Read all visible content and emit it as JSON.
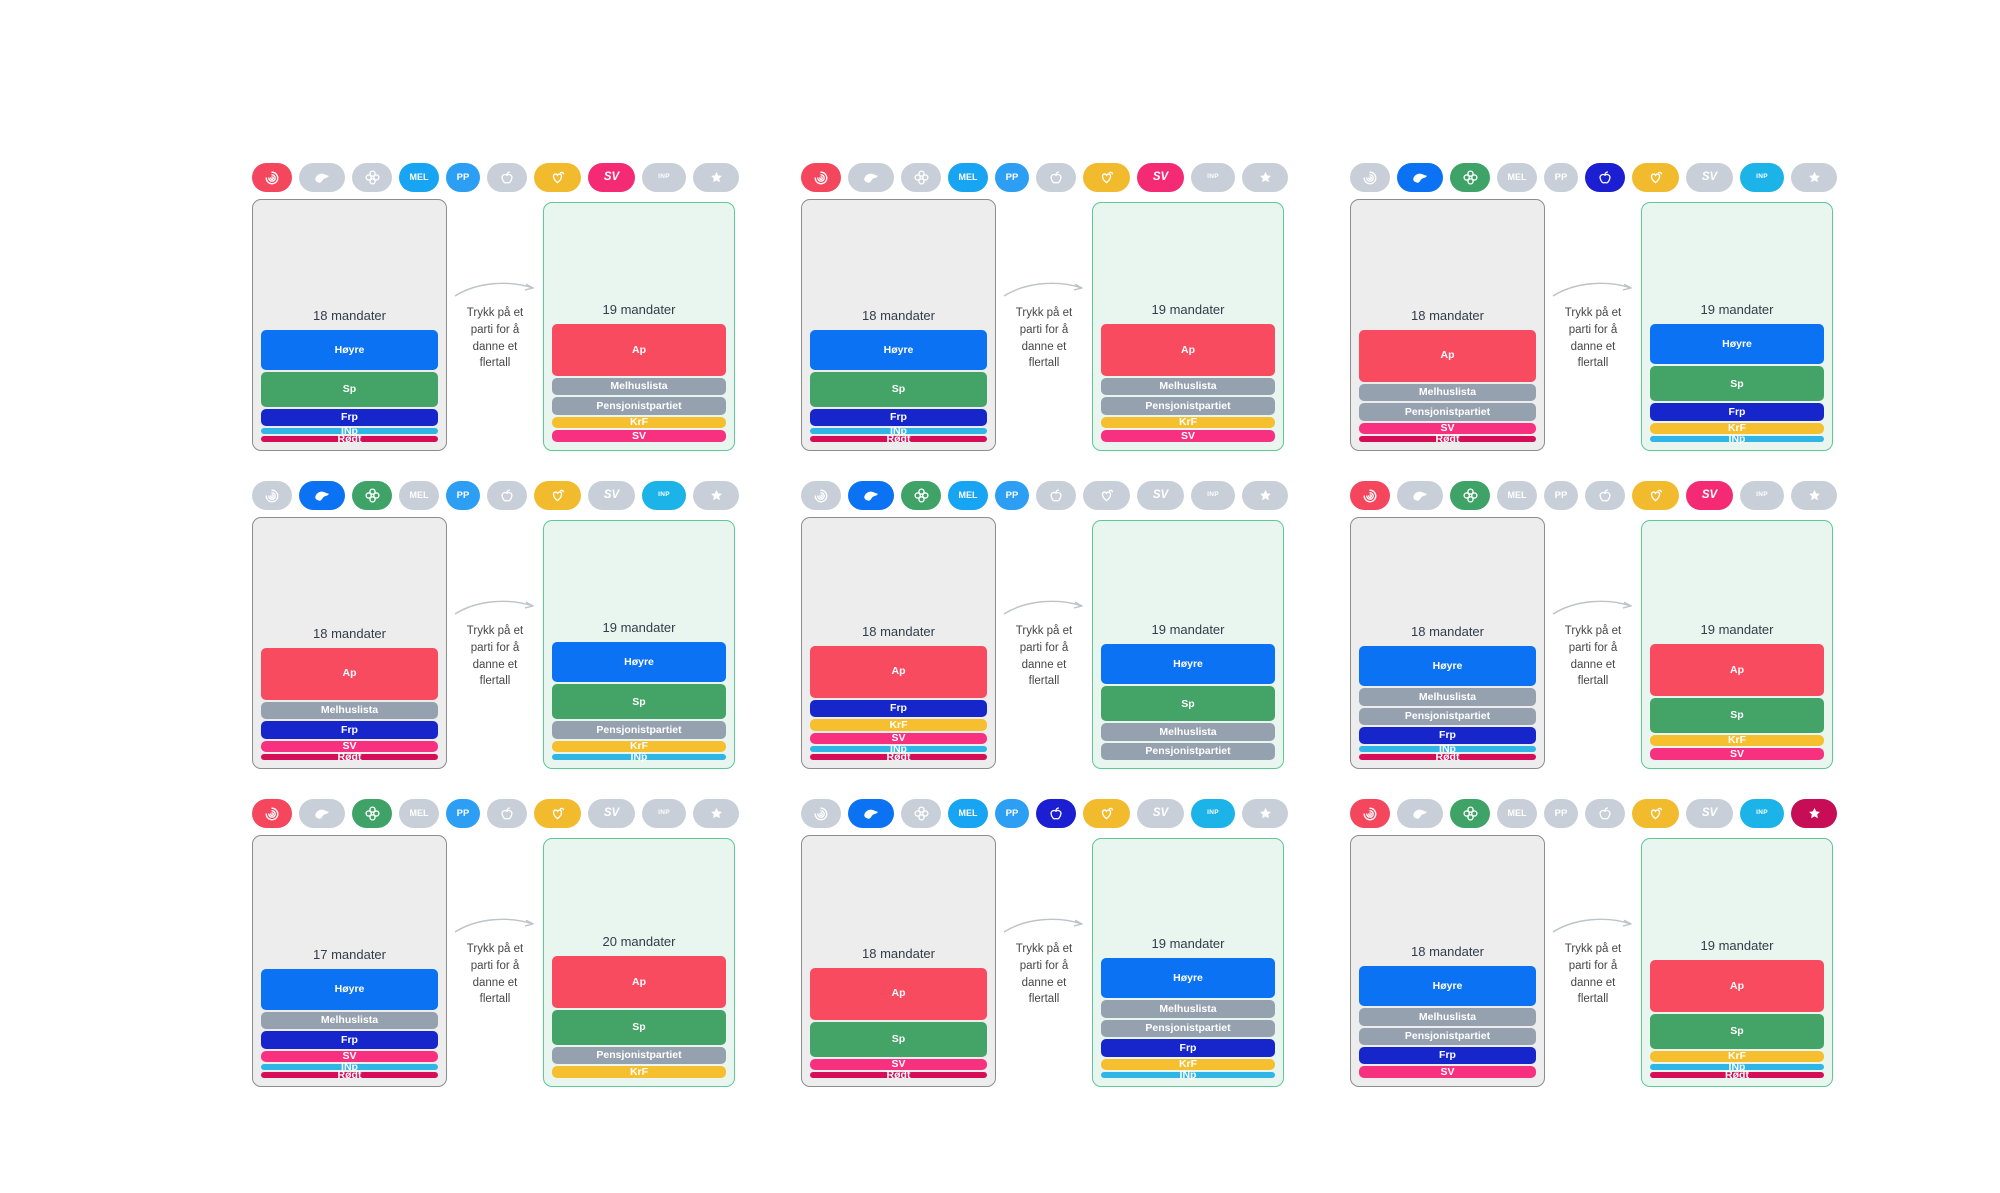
{
  "instruction": {
    "lines": [
      "Trykk på et",
      "parti for å",
      "danne et",
      "flertall"
    ]
  },
  "icon_order": [
    "ap",
    "hoyre",
    "sp",
    "mel",
    "pp",
    "frp",
    "krf",
    "sv",
    "inp",
    "rodt"
  ],
  "parties": {
    "ap": {
      "label": "Ap",
      "icon_text": "",
      "glyph": "rose-icon",
      "color": "#F84B5F",
      "icon_color": "#F4465C"
    },
    "hoyre": {
      "label": "Høyre",
      "icon_text": "",
      "glyph": "hoyre-logo-icon",
      "color": "#0B72F3",
      "icon_color": "#0B72F3"
    },
    "sp": {
      "label": "Sp",
      "icon_text": "",
      "glyph": "clover-icon",
      "color": "#44A366",
      "icon_color": "#3FA368"
    },
    "mel": {
      "label": "Melhuslista",
      "icon_text": "MEL",
      "glyph": "",
      "color": "#96A1AF",
      "icon_color": "#17A4F2"
    },
    "pp": {
      "label": "Pensjonistpartiet",
      "icon_text": "PP",
      "glyph": "",
      "color": "#96A1AF",
      "icon_color": "#2C9FF4"
    },
    "frp": {
      "label": "Frp",
      "icon_text": "",
      "glyph": "apple-icon",
      "color": "#1626CB",
      "icon_color": "#1B1FD1"
    },
    "krf": {
      "label": "KrF",
      "icon_text": "",
      "glyph": "heart-icon",
      "color": "#F6BF2F",
      "icon_color": "#F2BB2E"
    },
    "sv": {
      "label": "SV",
      "icon_text": "SV",
      "glyph": "",
      "color": "#F73180",
      "icon_color": "#F42A74"
    },
    "inp": {
      "label": "INp",
      "icon_text": "INP",
      "glyph": "",
      "color": "#30B5E7",
      "icon_color": "#1CB4E8"
    },
    "rodt": {
      "label": "Rødt",
      "icon_text": "",
      "glyph": "star-icon",
      "color": "#D60E58",
      "icon_color": "#C60D55"
    }
  },
  "ui_colors": {
    "panel_gray_bg": "#EDEDEE",
    "panel_gray_border": "#8D8D8D",
    "panel_green_bg": "#E8F6EF",
    "panel_green_border": "#5EC897",
    "inactive_pill": "#C8CFD8",
    "arrow": "#BCC3C9",
    "title_text": "#313D49",
    "instruction_text": "#464646",
    "background": "#FFFFFF"
  },
  "chart_data": [
    {
      "type": "bar",
      "stacked": true,
      "active": [
        "ap",
        "mel",
        "pp",
        "krf",
        "sv"
      ],
      "left": {
        "title": "18 mandater",
        "bars": [
          {
            "party": "hoyre",
            "seats": 7
          },
          {
            "party": "sp",
            "seats": 6
          },
          {
            "party": "frp",
            "seats": 3
          },
          {
            "party": "inp",
            "seats": 1
          },
          {
            "party": "rodt",
            "seats": 1
          }
        ]
      },
      "right": {
        "title": "19 mandater",
        "bars": [
          {
            "party": "ap",
            "seats": 9
          },
          {
            "party": "mel",
            "seats": 3
          },
          {
            "party": "pp",
            "seats": 3
          },
          {
            "party": "krf",
            "seats": 2
          },
          {
            "party": "sv",
            "seats": 2
          }
        ]
      }
    },
    {
      "type": "bar",
      "stacked": true,
      "active": [
        "ap",
        "mel",
        "pp",
        "krf",
        "sv"
      ],
      "left": {
        "title": "18 mandater",
        "bars": [
          {
            "party": "hoyre",
            "seats": 7
          },
          {
            "party": "sp",
            "seats": 6
          },
          {
            "party": "frp",
            "seats": 3
          },
          {
            "party": "inp",
            "seats": 1
          },
          {
            "party": "rodt",
            "seats": 1
          }
        ]
      },
      "right": {
        "title": "19 mandater",
        "bars": [
          {
            "party": "ap",
            "seats": 9
          },
          {
            "party": "mel",
            "seats": 3
          },
          {
            "party": "pp",
            "seats": 3
          },
          {
            "party": "krf",
            "seats": 2
          },
          {
            "party": "sv",
            "seats": 2
          }
        ]
      }
    },
    {
      "type": "bar",
      "stacked": true,
      "active": [
        "hoyre",
        "sp",
        "frp",
        "krf",
        "inp"
      ],
      "left": {
        "title": "18 mandater",
        "bars": [
          {
            "party": "ap",
            "seats": 9
          },
          {
            "party": "mel",
            "seats": 3
          },
          {
            "party": "pp",
            "seats": 3
          },
          {
            "party": "sv",
            "seats": 2
          },
          {
            "party": "rodt",
            "seats": 1
          }
        ]
      },
      "right": {
        "title": "19 mandater",
        "bars": [
          {
            "party": "hoyre",
            "seats": 7
          },
          {
            "party": "sp",
            "seats": 6
          },
          {
            "party": "frp",
            "seats": 3
          },
          {
            "party": "krf",
            "seats": 2
          },
          {
            "party": "inp",
            "seats": 1
          }
        ]
      }
    },
    {
      "type": "bar",
      "stacked": true,
      "active": [
        "hoyre",
        "sp",
        "pp",
        "krf",
        "inp"
      ],
      "left": {
        "title": "18 mandater",
        "bars": [
          {
            "party": "ap",
            "seats": 9
          },
          {
            "party": "mel",
            "seats": 3
          },
          {
            "party": "frp",
            "seats": 3
          },
          {
            "party": "sv",
            "seats": 2
          },
          {
            "party": "rodt",
            "seats": 1
          }
        ]
      },
      "right": {
        "title": "19 mandater",
        "bars": [
          {
            "party": "hoyre",
            "seats": 7
          },
          {
            "party": "sp",
            "seats": 6
          },
          {
            "party": "pp",
            "seats": 3
          },
          {
            "party": "krf",
            "seats": 2
          },
          {
            "party": "inp",
            "seats": 1
          }
        ]
      }
    },
    {
      "type": "bar",
      "stacked": true,
      "active": [
        "hoyre",
        "sp",
        "mel",
        "pp"
      ],
      "left": {
        "title": "18 mandater",
        "bars": [
          {
            "party": "ap",
            "seats": 9
          },
          {
            "party": "frp",
            "seats": 3
          },
          {
            "party": "krf",
            "seats": 2
          },
          {
            "party": "sv",
            "seats": 2
          },
          {
            "party": "inp",
            "seats": 1
          },
          {
            "party": "rodt",
            "seats": 1
          }
        ]
      },
      "right": {
        "title": "19 mandater",
        "bars": [
          {
            "party": "hoyre",
            "seats": 7
          },
          {
            "party": "sp",
            "seats": 6
          },
          {
            "party": "mel",
            "seats": 3
          },
          {
            "party": "pp",
            "seats": 3
          }
        ]
      }
    },
    {
      "type": "bar",
      "stacked": true,
      "active": [
        "ap",
        "sp",
        "krf",
        "sv"
      ],
      "left": {
        "title": "18 mandater",
        "bars": [
          {
            "party": "hoyre",
            "seats": 7
          },
          {
            "party": "mel",
            "seats": 3
          },
          {
            "party": "pp",
            "seats": 3
          },
          {
            "party": "frp",
            "seats": 3
          },
          {
            "party": "inp",
            "seats": 1
          },
          {
            "party": "rodt",
            "seats": 1
          }
        ]
      },
      "right": {
        "title": "19 mandater",
        "bars": [
          {
            "party": "ap",
            "seats": 9
          },
          {
            "party": "sp",
            "seats": 6
          },
          {
            "party": "krf",
            "seats": 2
          },
          {
            "party": "sv",
            "seats": 2
          }
        ]
      }
    },
    {
      "type": "bar",
      "stacked": true,
      "active": [
        "ap",
        "sp",
        "pp",
        "krf"
      ],
      "left": {
        "title": "17 mandater",
        "bars": [
          {
            "party": "hoyre",
            "seats": 7
          },
          {
            "party": "mel",
            "seats": 3
          },
          {
            "party": "frp",
            "seats": 3
          },
          {
            "party": "sv",
            "seats": 2
          },
          {
            "party": "inp",
            "seats": 1
          },
          {
            "party": "rodt",
            "seats": 1
          }
        ]
      },
      "right": {
        "title": "20 mandater",
        "bars": [
          {
            "party": "ap",
            "seats": 9
          },
          {
            "party": "sp",
            "seats": 6
          },
          {
            "party": "pp",
            "seats": 3
          },
          {
            "party": "krf",
            "seats": 2
          }
        ]
      }
    },
    {
      "type": "bar",
      "stacked": true,
      "active": [
        "hoyre",
        "mel",
        "pp",
        "frp",
        "krf",
        "inp"
      ],
      "left": {
        "title": "18 mandater",
        "bars": [
          {
            "party": "ap",
            "seats": 9
          },
          {
            "party": "sp",
            "seats": 6
          },
          {
            "party": "sv",
            "seats": 2
          },
          {
            "party": "rodt",
            "seats": 1
          }
        ]
      },
      "right": {
        "title": "19 mandater",
        "bars": [
          {
            "party": "hoyre",
            "seats": 7
          },
          {
            "party": "mel",
            "seats": 3
          },
          {
            "party": "pp",
            "seats": 3
          },
          {
            "party": "frp",
            "seats": 3
          },
          {
            "party": "krf",
            "seats": 2
          },
          {
            "party": "inp",
            "seats": 1
          }
        ]
      }
    },
    {
      "type": "bar",
      "stacked": true,
      "active": [
        "ap",
        "sp",
        "krf",
        "inp",
        "rodt"
      ],
      "left": {
        "title": "18 mandater",
        "bars": [
          {
            "party": "hoyre",
            "seats": 7
          },
          {
            "party": "mel",
            "seats": 3
          },
          {
            "party": "pp",
            "seats": 3
          },
          {
            "party": "frp",
            "seats": 3
          },
          {
            "party": "sv",
            "seats": 2
          }
        ]
      },
      "right": {
        "title": "19 mandater",
        "bars": [
          {
            "party": "ap",
            "seats": 9
          },
          {
            "party": "sp",
            "seats": 6
          },
          {
            "party": "krf",
            "seats": 2
          },
          {
            "party": "inp",
            "seats": 1
          },
          {
            "party": "rodt",
            "seats": 1
          }
        ]
      }
    }
  ]
}
